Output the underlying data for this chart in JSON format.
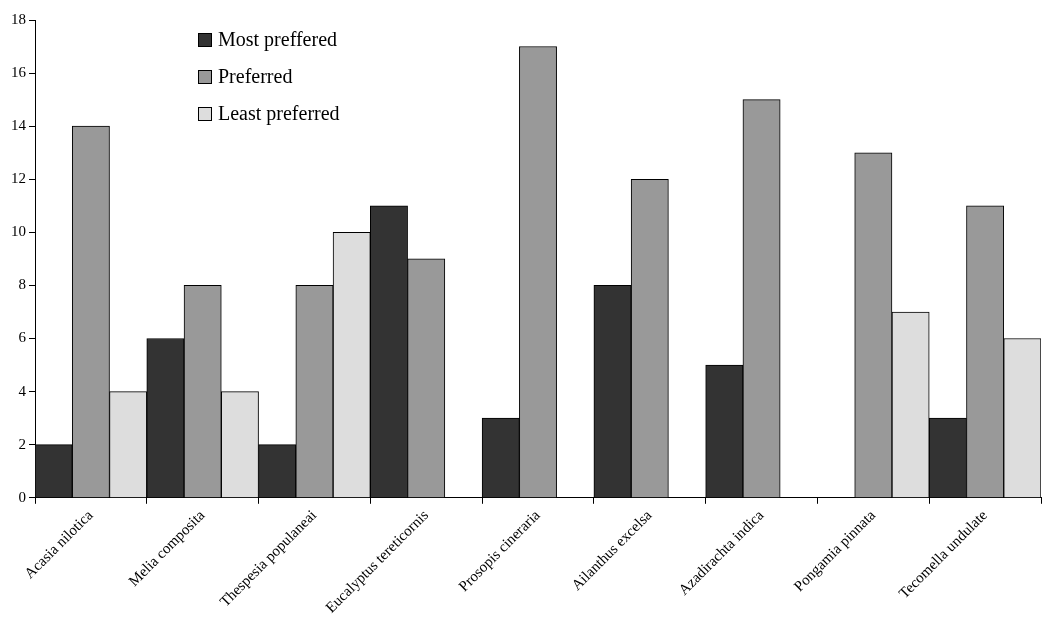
{
  "chart_data": {
    "type": "bar",
    "categories": [
      "Acasia nilotica",
      "Melia composita",
      "Thespesia populaneai",
      "Eucalyptus tereticornis",
      "Prosopis cineraria",
      "Ailanthus excelsa",
      "Azadirachta indica",
      "Pongamia pinnata",
      "Tecomella undulate"
    ],
    "series": [
      {
        "name": "Most preffered",
        "color": "#333333",
        "values": [
          2,
          6,
          2,
          11,
          3,
          8,
          5,
          null,
          3
        ]
      },
      {
        "name": "Preferred",
        "color": "#999999",
        "values": [
          14,
          8,
          8,
          9,
          17,
          12,
          15,
          13,
          11
        ]
      },
      {
        "name": "Least preferred",
        "color": "#dddddd",
        "values": [
          4,
          4,
          10,
          null,
          null,
          null,
          null,
          7,
          6
        ]
      }
    ],
    "ylim": [
      0,
      18
    ],
    "yticks": [
      0,
      2,
      4,
      6,
      8,
      10,
      12,
      14,
      16,
      18
    ],
    "grid": false,
    "legend": "top left"
  }
}
